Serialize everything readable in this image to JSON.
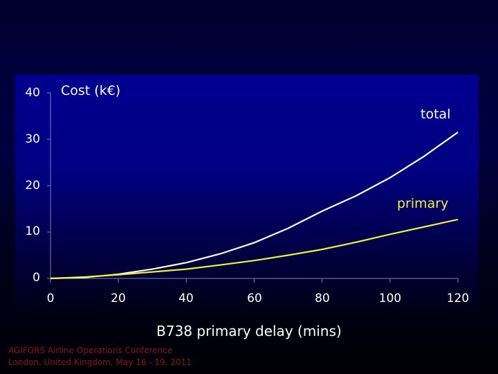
{
  "chart_data": {
    "type": "line",
    "title": "",
    "xlabel": "B738 primary delay (mins)",
    "ylabel": "Cost (k€)",
    "xlim": [
      0,
      120
    ],
    "ylim": [
      0,
      40
    ],
    "xticks": [
      0,
      20,
      40,
      60,
      80,
      100,
      120
    ],
    "yticks": [
      0,
      10,
      20,
      30,
      40
    ],
    "grid": false,
    "legend": "inline labels at right end of lines",
    "x": [
      0,
      10,
      20,
      30,
      40,
      50,
      60,
      70,
      80,
      90,
      100,
      110,
      120
    ],
    "series": [
      {
        "name": "total",
        "color": "#ffffff",
        "values": [
          0,
          0.2,
          0.9,
          2.0,
          3.4,
          5.3,
          7.7,
          10.8,
          14.5,
          17.8,
          21.7,
          26.3,
          31.5
        ]
      },
      {
        "name": "primary",
        "color": "#f0f040",
        "values": [
          0,
          0.3,
          0.8,
          1.4,
          2.0,
          2.9,
          3.85,
          5.0,
          6.25,
          7.8,
          9.5,
          11.1,
          12.7
        ]
      }
    ]
  },
  "labels": {
    "ylabel": "Cost (k€)",
    "xlabel": "B738 primary delay (mins)",
    "total": "total",
    "primary": "primary"
  },
  "ticks": {
    "y": [
      "40",
      "30",
      "20",
      "10",
      "0"
    ],
    "x": [
      "0",
      "20",
      "40",
      "60",
      "80",
      "100",
      "120"
    ]
  },
  "footer": {
    "line1": "AGIFORS Airline Operations Conference",
    "line2": "London, United Kingdom, May 16 - 19, 2011"
  }
}
